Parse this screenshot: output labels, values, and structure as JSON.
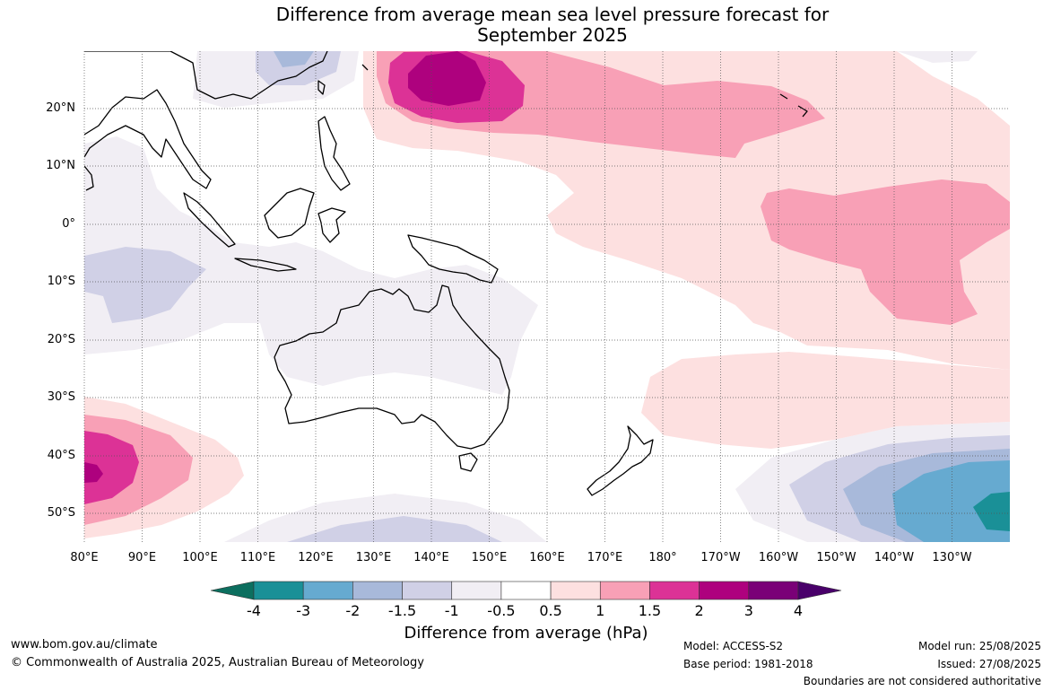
{
  "title": {
    "line1": "Difference from average mean sea level pressure forecast for",
    "line2": "September 2025"
  },
  "map": {
    "latitude_labels": [
      "20°N",
      "10°N",
      "0°",
      "10°S",
      "20°S",
      "30°S",
      "40°S",
      "50°S"
    ],
    "longitude_labels": [
      "80°E",
      "90°E",
      "100°E",
      "110°E",
      "120°E",
      "130°E",
      "140°E",
      "150°E",
      "160°E",
      "170°E",
      "180°",
      "170°W",
      "160°W",
      "150°W",
      "140°W",
      "130°W"
    ],
    "gridlines": true,
    "coastline_color": "#000000",
    "ocean_background": "#ffffff"
  },
  "colorbar": {
    "tick_labels": [
      "-4",
      "-3",
      "-2",
      "-1.5",
      "-1",
      "-0.5",
      "0.5",
      "1",
      "1.5",
      "2",
      "3",
      "4"
    ],
    "colors": [
      "#0c6f5f",
      "#1a9097",
      "#66aad0",
      "#a8b9da",
      "#d0d0e6",
      "#f1eef4",
      "#ffffff",
      "#fde0e0",
      "#f8a0b6",
      "#dc3296",
      "#ae017e",
      "#7a0177",
      "#49006a"
    ],
    "title": "Difference from average (hPa)"
  },
  "footer": {
    "url": "www.bom.gov.au/climate",
    "copyright": "© Commonwealth of Australia 2025, Australian Bureau of Meteorology",
    "model": "Model: ACCESS-S2",
    "base_period": "Base period: 1981-2018",
    "model_run": "Model run: 25/08/2025",
    "issued": "Issued: 27/08/2025",
    "disclaimer": "Boundaries are not considered authoritative"
  }
}
